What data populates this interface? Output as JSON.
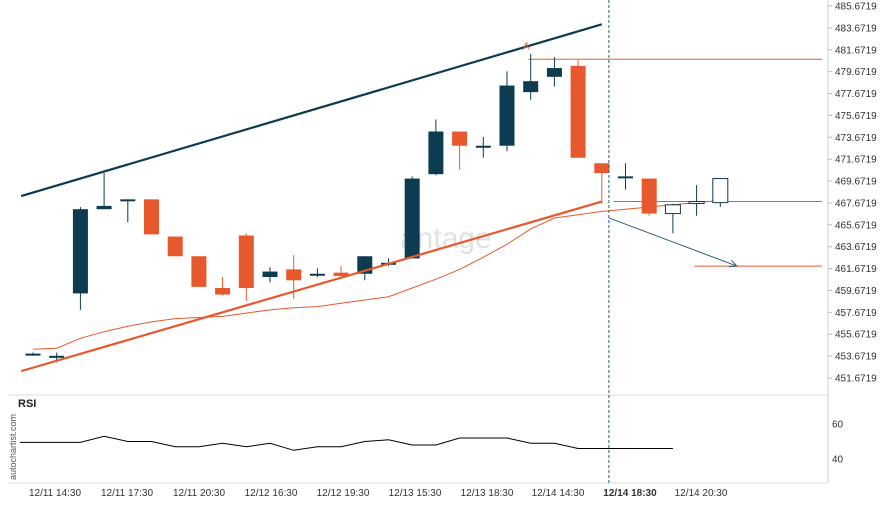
{
  "brand": "autochartist.com",
  "watermark": "antage",
  "rsi_title": "RSI",
  "marker_letter": "A",
  "colors": {
    "bull": "#0d3b4f",
    "bear": "#e8582d",
    "support": "#e8582d",
    "resistance": "#0d3b4f",
    "ma": "#e8582d",
    "forecast": "#2c5d73",
    "now_line": "#1b5d80",
    "grid": "#e6e6e6",
    "rsi": "#000000"
  },
  "chart_data": [
    {
      "type": "candlestick",
      "title": "",
      "y_ticks": [
        "485.6719",
        "483.6719",
        "481.6719",
        "479.6719",
        "477.6719",
        "475.6719",
        "473.6719",
        "471.6719",
        "469.6719",
        "467.6719",
        "465.6719",
        "463.6719",
        "461.6719",
        "459.6719",
        "457.6719",
        "455.6719",
        "453.6719",
        "451.6719"
      ],
      "ylim": [
        450.67,
        486.07
      ],
      "x_tick_labels": [
        "12/11 14:30",
        "12/11 17:30",
        "12/11 20:30",
        "12/12 16:30",
        "12/12 19:30",
        "12/13 15:30",
        "12/13 18:30",
        "12/14 14:30",
        "12/14 18:30",
        "12/14 20:30"
      ],
      "current_time_label": "12/14 18:30",
      "candles": [
        {
          "o": 453.9,
          "h": 454.0,
          "l": 453.7,
          "c": 453.9
        },
        {
          "o": 453.7,
          "h": 454.0,
          "l": 453.1,
          "c": 453.7
        },
        {
          "o": 459.4,
          "h": 467.3,
          "l": 457.9,
          "c": 467.1
        },
        {
          "o": 467.1,
          "h": 470.4,
          "l": 467.1,
          "c": 467.4
        },
        {
          "o": 467.9,
          "h": 468.0,
          "l": 465.9,
          "c": 468.0
        },
        {
          "o": 468.0,
          "h": 468.0,
          "l": 464.8,
          "c": 464.8
        },
        {
          "o": 464.6,
          "h": 464.6,
          "l": 462.9,
          "c": 462.8
        },
        {
          "o": 462.8,
          "h": 462.8,
          "l": 460.0,
          "c": 460.0
        },
        {
          "o": 459.9,
          "h": 460.9,
          "l": 459.2,
          "c": 459.3
        },
        {
          "o": 464.7,
          "h": 464.9,
          "l": 458.7,
          "c": 459.9
        },
        {
          "o": 460.9,
          "h": 461.8,
          "l": 460.4,
          "c": 461.4
        },
        {
          "o": 461.6,
          "h": 462.9,
          "l": 458.9,
          "c": 460.6
        },
        {
          "o": 461.1,
          "h": 461.7,
          "l": 460.9,
          "c": 461.2
        },
        {
          "o": 461.3,
          "h": 461.9,
          "l": 460.8,
          "c": 461.0
        },
        {
          "o": 461.2,
          "h": 462.8,
          "l": 460.6,
          "c": 462.8
        },
        {
          "o": 462.2,
          "h": 462.6,
          "l": 461.9,
          "c": 462.2
        },
        {
          "o": 462.6,
          "h": 470.1,
          "l": 462.6,
          "c": 469.9
        },
        {
          "o": 470.3,
          "h": 475.3,
          "l": 470.2,
          "c": 474.2
        },
        {
          "o": 474.2,
          "h": 474.2,
          "l": 470.7,
          "c": 472.9
        },
        {
          "o": 472.9,
          "h": 473.7,
          "l": 471.8,
          "c": 472.9
        },
        {
          "o": 472.9,
          "h": 479.7,
          "l": 472.4,
          "c": 478.4
        },
        {
          "o": 477.8,
          "h": 481.3,
          "l": 477.1,
          "c": 478.8
        },
        {
          "o": 479.2,
          "h": 481.0,
          "l": 478.3,
          "c": 480.0
        },
        {
          "o": 480.2,
          "h": 480.7,
          "l": 471.8,
          "c": 471.8
        },
        {
          "o": 471.3,
          "h": 471.3,
          "l": 467.6,
          "c": 470.4
        },
        {
          "o": 470.1,
          "h": 471.3,
          "l": 468.9,
          "c": 470.1
        },
        {
          "o": 469.9,
          "h": 469.9,
          "l": 466.5,
          "c": 466.7
        },
        {
          "o": 466.7,
          "h": 467.6,
          "l": 464.9,
          "c": 467.5
        },
        {
          "o": 467.7,
          "h": 469.3,
          "l": 466.5,
          "c": 467.8
        },
        {
          "o": 467.7,
          "h": 469.9,
          "l": 467.3,
          "c": 469.9
        }
      ],
      "moving_average": [
        454.3,
        454.4,
        455.3,
        455.9,
        456.4,
        456.8,
        457.1,
        457.2,
        457.3,
        457.6,
        457.9,
        458.1,
        458.2,
        458.5,
        458.8,
        459.1,
        459.9,
        460.7,
        461.6,
        462.7,
        463.9,
        465.3,
        466.3,
        466.6,
        466.9,
        467.1,
        467.3,
        467.5,
        467.7,
        467.9
      ],
      "support_line": [
        {
          "i": -0.5,
          "v": 452.3
        },
        {
          "i": 24.0,
          "v": 467.8
        }
      ],
      "resistance_line": [
        {
          "i": -0.5,
          "v": 468.3
        },
        {
          "i": 24.0,
          "v": 484.0
        }
      ],
      "resistance_level": {
        "v": 480.8,
        "from": 20.9,
        "to": 34.0
      },
      "target_level": {
        "v": 461.9,
        "from": 27.9,
        "to": 33.8
      },
      "forecast_arrow": [
        {
          "i": 24.3,
          "v": 466.3
        },
        {
          "i": 29.7,
          "v": 461.9
        }
      ],
      "marker": {
        "i": 20.8,
        "v": 481.7
      },
      "current_index": 24.3
    },
    {
      "type": "line",
      "title": "RSI",
      "y_ticks": [
        "60",
        "40"
      ],
      "ylim": [
        34,
        68
      ],
      "values": [
        49.5,
        49.5,
        49.5,
        49.5,
        53.0,
        50.0,
        50.0,
        47.0,
        47.0,
        49.0,
        47.0,
        49.0,
        45.0,
        47.0,
        47.0,
        50.0,
        51.0,
        48.0,
        48.0,
        52.0,
        52.0,
        52.0,
        49.0,
        49.0,
        46.0,
        46.0,
        46.0,
        46.0,
        46.0
      ]
    }
  ]
}
